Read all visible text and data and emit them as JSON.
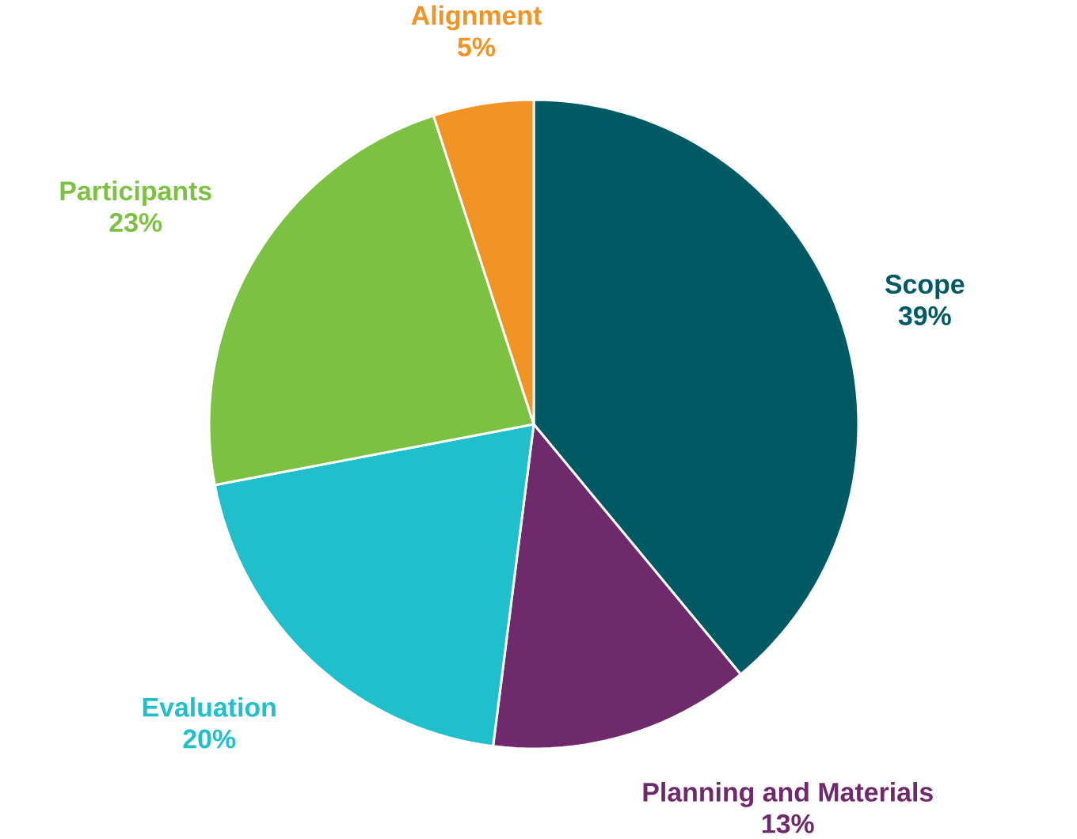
{
  "chart_data": {
    "type": "pie",
    "categories": [
      "Scope",
      "Planning and Materials",
      "Evaluation",
      "Participants",
      "Alignment"
    ],
    "values": [
      39,
      13,
      20,
      23,
      5
    ],
    "value_labels": [
      "39%",
      "13%",
      "20%",
      "23%",
      "5%"
    ],
    "colors": [
      "#005a64",
      "#6e2a6b",
      "#1fbfcc",
      "#7cc142",
      "#f39323"
    ]
  }
}
